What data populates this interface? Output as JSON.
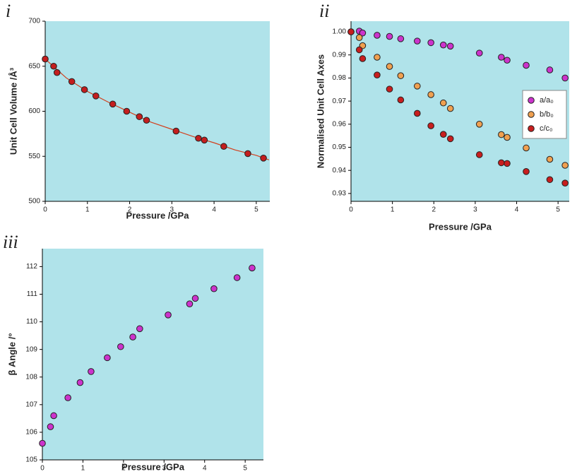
{
  "chart_data": [
    {
      "type": "scatter",
      "label": "i",
      "xlabel": "Pressure /GPa",
      "ylabel": "Unit Cell Volume /Å³",
      "xlim": [
        0,
        5.32
      ],
      "ylim": [
        500,
        700
      ],
      "xticks": [
        0,
        1,
        2,
        3,
        4,
        5
      ],
      "yticks": [
        500,
        550,
        600,
        650,
        700
      ],
      "background": "#b0e3ea",
      "series": [
        {
          "style": "line",
          "color": "#d2401e",
          "x": [
            0,
            0.5,
            1,
            1.5,
            2,
            2.5,
            3,
            3.5,
            4,
            4.5,
            5,
            5.3
          ],
          "values": [
            658,
            637,
            622,
            610,
            599,
            588,
            580,
            572,
            565,
            557,
            551,
            546
          ]
        },
        {
          "style": "markers",
          "color": "#c41e1e",
          "x": [
            0,
            0.2,
            0.28,
            0.63,
            0.93,
            1.2,
            1.6,
            1.93,
            2.23,
            2.4,
            3.1,
            3.63,
            3.77,
            4.23,
            4.8,
            5.17
          ],
          "values": [
            658,
            650,
            643,
            633,
            624,
            617,
            608,
            600,
            594,
            590,
            578,
            570,
            568,
            561,
            553,
            548
          ]
        }
      ]
    },
    {
      "type": "scatter",
      "label": "ii",
      "xlabel": "Pressure /GPa",
      "ylabel": "Normalised Unit Cell Axes",
      "xlim": [
        0,
        5.27
      ],
      "ylim": [
        0.9266,
        1.0046
      ],
      "xticks": [
        0,
        1,
        2,
        3,
        4,
        5
      ],
      "yticks": [
        0.93,
        0.94,
        0.95,
        0.96,
        0.97,
        0.98,
        0.99,
        {
          "value": 1,
          "label": "1.00"
        }
      ],
      "background": "#b0e3ea",
      "legend": "right",
      "series": [
        {
          "name": "a/a₀",
          "style": "markers",
          "color": "#cc33cc",
          "x": [
            0,
            0.2,
            0.28,
            0.63,
            0.93,
            1.2,
            1.6,
            1.93,
            2.23,
            2.4,
            3.1,
            3.63,
            3.77,
            4.23,
            4.8,
            5.17
          ],
          "values": [
            1.0,
            1.0003,
            0.9995,
            0.9985,
            0.998,
            0.997,
            0.996,
            0.9953,
            0.9943,
            0.9938,
            0.9908,
            0.989,
            0.9877,
            0.9855,
            0.9835,
            0.98
          ]
        },
        {
          "name": "b/b₀",
          "style": "markers",
          "color": "#f0a050",
          "x": [
            0,
            0.2,
            0.28,
            0.63,
            0.93,
            1.2,
            1.6,
            1.93,
            2.23,
            2.4,
            3.1,
            3.63,
            3.77,
            4.23,
            4.8,
            5.17
          ],
          "values": [
            1.0,
            0.9975,
            0.994,
            0.989,
            0.985,
            0.981,
            0.9765,
            0.9728,
            0.9692,
            0.9668,
            0.96,
            0.9555,
            0.9543,
            0.9497,
            0.9448,
            0.9422
          ]
        },
        {
          "name": "c/c₀",
          "style": "markers",
          "color": "#c81e1e",
          "x": [
            0,
            0.2,
            0.28,
            0.63,
            0.93,
            1.2,
            1.6,
            1.93,
            2.23,
            2.4,
            3.1,
            3.63,
            3.77,
            4.23,
            4.8,
            5.17
          ],
          "values": [
            1.0,
            0.9922,
            0.9884,
            0.9813,
            0.9752,
            0.9705,
            0.9647,
            0.9593,
            0.9556,
            0.9537,
            0.9468,
            0.9433,
            0.943,
            0.9395,
            0.936,
            0.9345
          ]
        }
      ]
    },
    {
      "type": "scatter",
      "label": "iii",
      "xlabel": "Pressure /GPa",
      "ylabel": "β Angle /°",
      "xlim": [
        0,
        5.45
      ],
      "ylim": [
        105,
        112.65
      ],
      "xticks": [
        0,
        1,
        2,
        3,
        4,
        5
      ],
      "yticks": [
        105,
        106,
        107,
        108,
        109,
        110,
        111,
        112
      ],
      "background": "#b0e3ea",
      "series": [
        {
          "style": "markers",
          "color": "#cc33cc",
          "x": [
            0,
            0.2,
            0.28,
            0.63,
            0.93,
            1.2,
            1.6,
            1.93,
            2.23,
            2.4,
            3.1,
            3.63,
            3.77,
            4.23,
            4.8,
            5.17
          ],
          "values": [
            105.6,
            106.2,
            106.6,
            107.25,
            107.8,
            108.2,
            108.7,
            109.1,
            109.45,
            109.75,
            110.25,
            110.65,
            110.85,
            111.2,
            111.6,
            111.95
          ]
        }
      ]
    }
  ]
}
